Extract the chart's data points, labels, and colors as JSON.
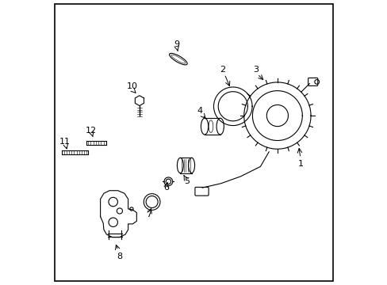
{
  "background_color": "#ffffff",
  "line_color": "#000000",
  "label_color": "#000000",
  "border_color": "#000000",
  "fig_width": 4.89,
  "fig_height": 3.6,
  "dpi": 100
}
